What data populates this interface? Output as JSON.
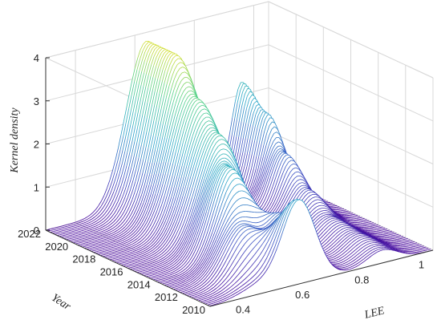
{
  "chart_data": {
    "type": "surface",
    "xlabel": "LEE",
    "ylabel": "Year",
    "zlabel": "Kernel density",
    "x_ticks": [
      0.4,
      0.6,
      0.8,
      1
    ],
    "x_tick_labels": [
      "0.4",
      "0.6",
      "0.8",
      "1"
    ],
    "y_ticks": [
      2010,
      2012,
      2014,
      2016,
      2018,
      2020,
      2022
    ],
    "y_tick_labels": [
      "2010",
      "2012",
      "2014",
      "2016",
      "2018",
      "2020",
      "2022"
    ],
    "z_ticks": [
      0,
      1,
      2,
      3,
      4
    ],
    "z_tick_labels": [
      "0",
      "1",
      "2",
      "3",
      "4"
    ],
    "xlim": [
      0.3,
      1.05
    ],
    "ylim": [
      2010,
      2022
    ],
    "zlim": [
      0,
      4
    ],
    "grid": true,
    "colormap": [
      "#440099",
      "#3b52c4",
      "#2aa8c8",
      "#4fd08a",
      "#f5e21a"
    ],
    "series": [
      {
        "year": 2010,
        "peaks": [
          {
            "x": 0.48,
            "height": 0.25,
            "width": 0.07
          },
          {
            "x": 0.6,
            "height": 1.9,
            "width": 0.055
          },
          {
            "x": 0.88,
            "height": 0.3,
            "width": 0.05
          }
        ]
      },
      {
        "year": 2012,
        "peaks": [
          {
            "x": 0.5,
            "height": 1.2,
            "width": 0.06
          },
          {
            "x": 0.64,
            "height": 1.2,
            "width": 0.05
          },
          {
            "x": 0.88,
            "height": 0.4,
            "width": 0.05
          }
        ]
      },
      {
        "year": 2014,
        "peaks": [
          {
            "x": 0.55,
            "height": 2.2,
            "width": 0.06
          },
          {
            "x": 0.88,
            "height": 0.5,
            "width": 0.05
          }
        ]
      },
      {
        "year": 2016,
        "peaks": [
          {
            "x": 0.6,
            "height": 2.6,
            "width": 0.07
          },
          {
            "x": 0.9,
            "height": 0.8,
            "width": 0.045
          }
        ]
      },
      {
        "year": 2018,
        "peaks": [
          {
            "x": 0.62,
            "height": 3.1,
            "width": 0.07
          },
          {
            "x": 0.92,
            "height": 1.3,
            "width": 0.04
          }
        ]
      },
      {
        "year": 2020,
        "peaks": [
          {
            "x": 0.64,
            "height": 3.8,
            "width": 0.07
          },
          {
            "x": 0.95,
            "height": 1.9,
            "width": 0.035
          }
        ]
      },
      {
        "year": 2022,
        "peaks": [
          {
            "x": 0.64,
            "height": 3.8,
            "width": 0.07
          },
          {
            "x": 0.96,
            "height": 2.3,
            "width": 0.035
          }
        ]
      }
    ]
  }
}
